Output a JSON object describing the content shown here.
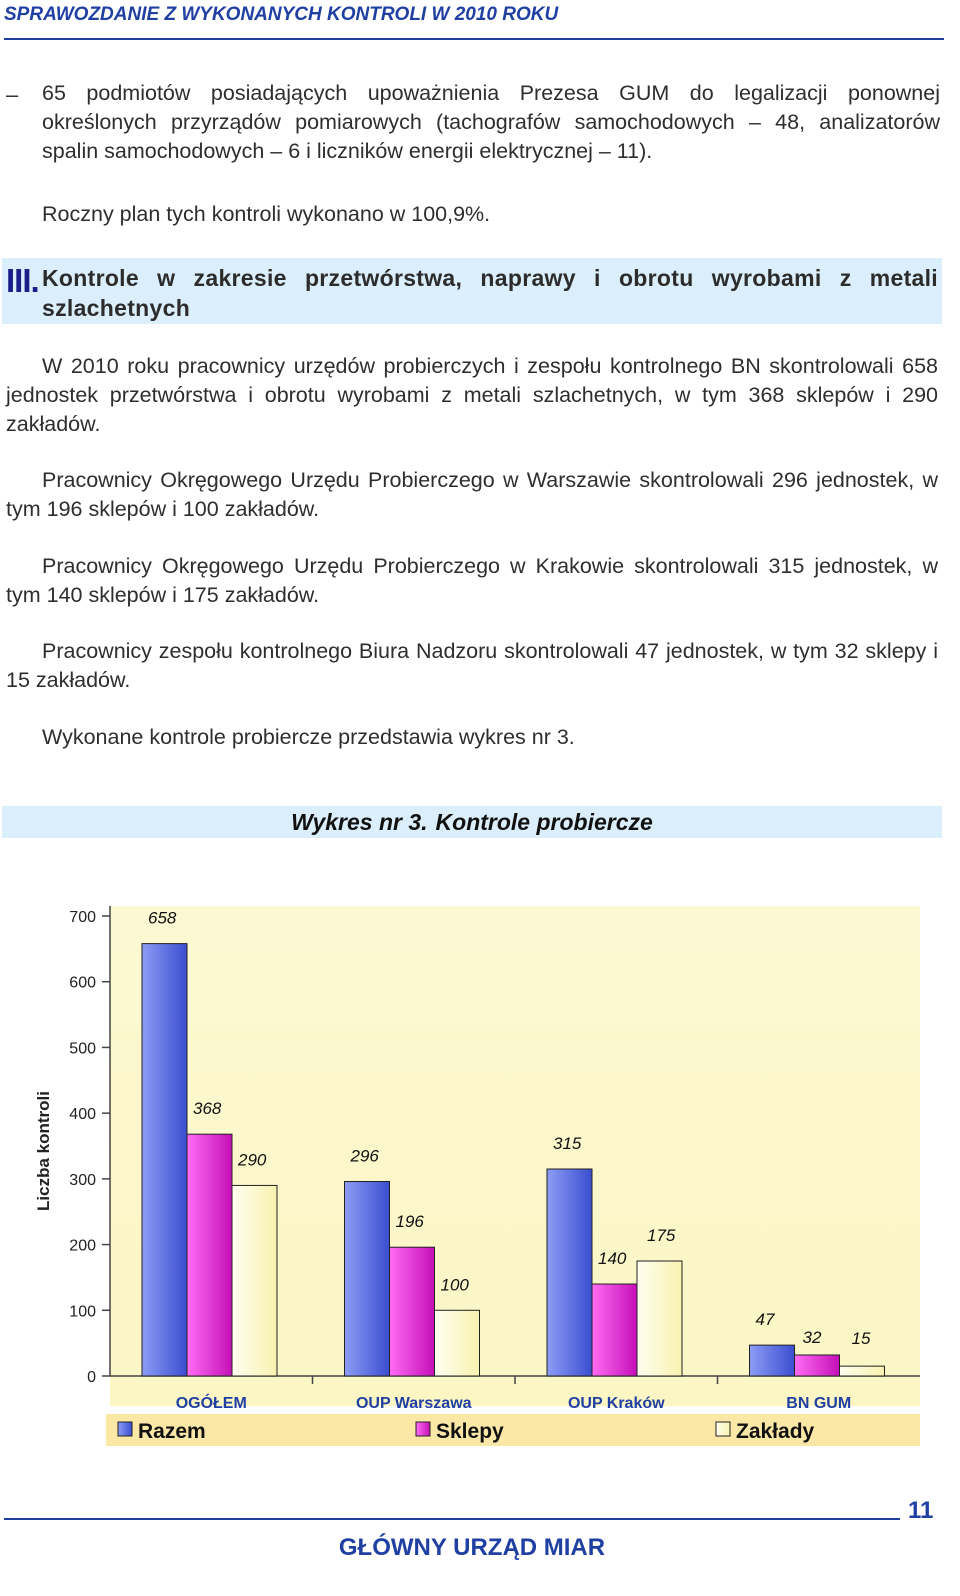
{
  "header": {
    "title": "SPRAWOZDANIE Z WYKONANYCH KONTROLI W 2010 ROKU"
  },
  "bullet": {
    "mark": "–",
    "text": "65 podmiotów posiadających upoważnienia Prezesa GUM do legalizacji ponownej określonych przyrządów pomiarowych (tachografów samochodowych – 48, analizatorów spalin samochodowych – 6 i liczników energii elektrycznej – 11)."
  },
  "plan_line": "Roczny plan tych kontroli wykonano w 100,9%.",
  "section": {
    "number": "III.",
    "title": "Kontrole w zakresie przetwórstwa, naprawy i obrotu wyrobami z metali szlachetnych"
  },
  "paragraphs": [
    "W 2010 roku pracownicy urzędów probierczych i zespołu kontrolnego BN skontrolowali 658 jednostek przetwórstwa i obrotu wyrobami z metali szlachetnych, w tym 368 sklepów i 290 zakładów.",
    "Pracownicy Okręgowego Urzędu Probierczego w Warszawie skontrolowali 296 jednostek, w tym 196 sklepów i 100 zakładów.",
    "Pracownicy Okręgowego Urzędu Probierczego w Krakowie skontrolowali 315 jednostek, w tym 140 sklepów i 175 zakładów.",
    "Pracownicy zespołu kontrolnego Biura Nadzoru skontrolowali 47 jednostek, w tym 32 sklepy i 15 zakładów.",
    "Wykonane kontrole probiercze przedstawia wykres nr 3."
  ],
  "figure": {
    "label": "Wykres nr 3.",
    "caption": "Kontrole probiercze"
  },
  "chart_data": {
    "type": "bar",
    "title": "",
    "xlabel": "",
    "ylabel": "Liczba kontroli",
    "ylim": [
      0,
      700
    ],
    "yticks": [
      0,
      100,
      200,
      300,
      400,
      500,
      600,
      700
    ],
    "categories": [
      "OGÓŁEM",
      "OUP Warszawa",
      "OUP Kraków",
      "BN GUM"
    ],
    "series": [
      {
        "name": "Razem",
        "values": [
          658,
          296,
          315,
          47
        ],
        "color": "#4b5fe0"
      },
      {
        "name": "Sklepy",
        "values": [
          368,
          196,
          140,
          32
        ],
        "color": "#e21fd4"
      },
      {
        "name": "Zakłady",
        "values": [
          290,
          100,
          175,
          15
        ],
        "color": "#fdfbd0"
      }
    ],
    "legend_position": "bottom",
    "grid": false,
    "plot_background": "#fbf6c4",
    "category_label_color": "#1f3fa3"
  },
  "footer": {
    "page_number": "11",
    "org": "GŁÓWNY URZĄD MIAR"
  }
}
